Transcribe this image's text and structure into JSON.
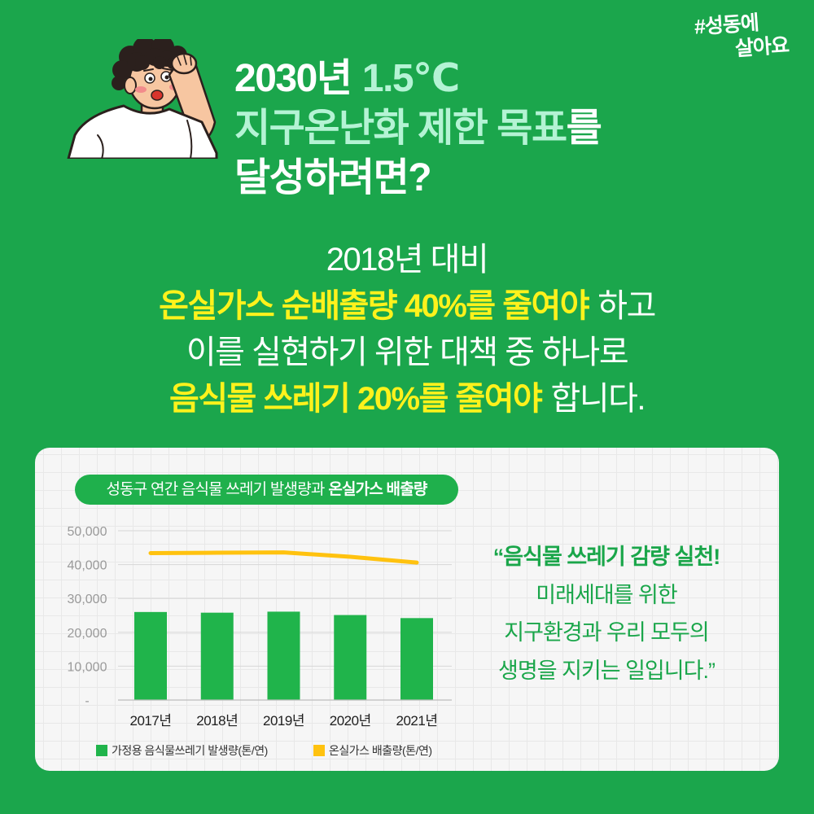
{
  "brand": {
    "hashtag": "#성동에",
    "slogan": "살아요"
  },
  "headline": {
    "year": "2030년",
    "temperature": "1.5℃",
    "goal": "지구온난화 제한 목표",
    "particle": "를",
    "question": "달성하려면?"
  },
  "message": {
    "baseline": "2018년 대비",
    "target_emission": "온실가스 순배출량 40%를 줄여야",
    "target_emission_suffix": "하고",
    "measure_intro": "이를 실현하기 위한 대책 중 하나로",
    "target_food_waste": "음식물 쓰레기 20%를 줄여야",
    "target_food_waste_suffix": "합니다."
  },
  "chart_data": {
    "type": "bar",
    "title_regular": "성동구 연간 음식물 쓰레기 발생량과",
    "title_bold": "온실가스 배출량",
    "categories": [
      "2017년",
      "2018년",
      "2019년",
      "2020년",
      "2021년"
    ],
    "series": [
      {
        "name": "가정용 음식물쓰레기 발생량(톤/연)",
        "type": "bar",
        "color": "#20b44b",
        "values": [
          26000,
          25800,
          26100,
          25100,
          24200
        ]
      },
      {
        "name": "온실가스 배출량(톤/연)",
        "type": "line",
        "color": "#ffc20f",
        "values": [
          43400,
          43500,
          43600,
          42300,
          40600
        ]
      }
    ],
    "ylim": [
      0,
      50000
    ],
    "yticks": [
      0,
      10000,
      20000,
      30000,
      40000,
      50000
    ],
    "ytick_labels": [
      "-",
      "10,000",
      "20,000",
      "30,000",
      "40,000",
      "50,000"
    ],
    "grid": true,
    "legend": "bottom-left"
  },
  "quote": {
    "line1": "“음식물 쓰레기 감량 실천!",
    "line2": "미래세대를 위한",
    "line3": "지구환경과 우리 모두의",
    "line4": "생명을 지키는 일입니다.”"
  },
  "colors": {
    "background": "#1ba64c",
    "headline_accent": "#b4f3d4",
    "highlight_yellow": "#fff21c",
    "label_pill": "#1fb04c",
    "quote_green": "#1aa64a",
    "panel": "#f6f6f6"
  }
}
